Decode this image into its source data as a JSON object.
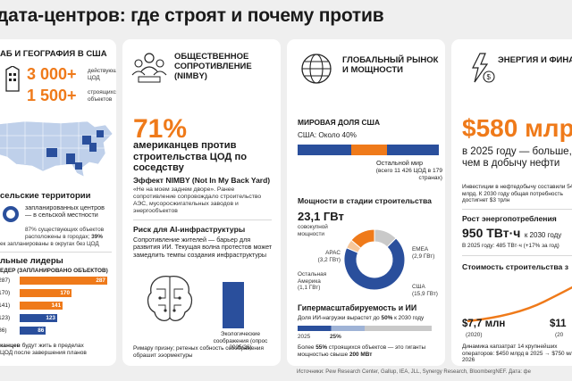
{
  "title": "дата-центров: где строят и почему против",
  "col1": {
    "head": "АБ И ГЕОГРАФИЯ В США",
    "stat1_value": "3 000+",
    "stat1_label": "действующих ЦОД",
    "stat2_value": "1 500+",
    "stat2_label": "строящихся объектов",
    "rural_title": "сельские территории",
    "rural_text": "запланированных центров — в сельской местности",
    "rural_note_a": "87% существующих объектов расположены в городах;",
    "rural_note_b": "39%",
    "rural_note_c": "ек запланированы в округах без ЦОД",
    "leaders_title": "льные лидеры",
    "leaders_sub": "ЕДЕР (ЗАПЛАНИРОВАНО ОБЪЕКТОВ)",
    "leaders": [
      {
        "label": "(287)",
        "value": 287
      },
      {
        "label": "(170)",
        "value": 170
      },
      {
        "label": "(141)",
        "value": 141
      },
      {
        "label": "(123)",
        "value": 123
      },
      {
        "label": "(86)",
        "value": 86
      }
    ],
    "footer_a": "канцев",
    "footer_b": " будут жить в пределах",
    "footer_c": "ЦОД после завершения планов"
  },
  "col2": {
    "head": "ОБЩЕСТВЕННОЕ СОПРОТИВЛЕНИЕ (NIMBY)",
    "pct": "71%",
    "pct_caption": "американцев против строительства ЦОД по соседству",
    "effect_title": "Эффект NIMBY (Not In My Back Yard)",
    "effect_text": "«Не на моем заднем дворе». Ранее сопротивление сопровождало строительство АЭС, мусоросжигательных заводов и энергообъектов",
    "risk_title": "Риск для AI-инфраструктуры",
    "risk_text": "Сопротивление жителей — барьер для развития ИИ. Текущая волна протестов может замедлить темпы создания инфраструктуры",
    "eco_label": "Экологические соображения (опрос 2025/26)",
    "footer": "Римару призну; ретеных собность ссоображения обрашит ээормектуры"
  },
  "col3": {
    "head": "ГЛОБАЛЬНЫЙ РЫНОК И МОЩНОСТИ",
    "share_title": "МИРОВАЯ ДОЛЯ США",
    "share_label": "США: Около 40%",
    "rest_label": "Остальной мир",
    "rest_sub": "(всего 11 426 ЦОД в 179 странах)",
    "capacity_title": "Мощности в стадии строительства",
    "capacity_value": "23,1 ГВт",
    "capacity_sub": "совокупной мощности",
    "segments": [
      {
        "name": "США",
        "value": "(15,9 ГВт)",
        "num": 15.9,
        "color": "#2a4f9c"
      },
      {
        "name": "Остальная Америка",
        "value": "(1,1 ГВт)",
        "num": 1.1,
        "color": "#f6c79a"
      },
      {
        "name": "APAC",
        "value": "(3,2 ГВт)",
        "num": 3.2,
        "color": "#ef7a1a"
      },
      {
        "name": "EMEA",
        "value": "(2,9 ГВт)",
        "num": 2.9,
        "color": "#c9c9c9"
      }
    ],
    "hyper_title": "Гипермасштабируемость и ИИ",
    "hyper_text_a": "Доля ИИ-нагрузки вырастет до ",
    "hyper_text_b": "50%",
    "hyper_text_c": " к 2030 году",
    "hyper_start": "2025",
    "hyper_start_pct": "25%",
    "hyper_value_2025": 25,
    "hyper_value_2030": 50,
    "hyper_foot_a": "Более ",
    "hyper_foot_b": "55%",
    "hyper_foot_c": " строящихся объектов — это гиганты мощностью свыше ",
    "hyper_foot_d": "200 МВт"
  },
  "col4": {
    "head": "ЭНЕРГИЯ И ФИНАНСЫ",
    "invest_value": "$580 млрд",
    "invest_caption": "в 2025 году — больше, чем в добычу нефти",
    "invest_note": "Инвестиции в нефтедобычу составили 540 млрд. К 2030 году общая потребность достигнет $3 трлн",
    "energy_title": "Рост энергопотребления",
    "energy_value": "950 ТВт·ч",
    "energy_suffix": "к 2030 году",
    "energy_note": "В 2025 году: 485 ТВт·ч (+17% за год)",
    "cost_title": "Стоимость строительства з",
    "cost_a": "$7,7 млн",
    "cost_a_year": "(2020)",
    "cost_b": "$11",
    "cost_b_year": "(20",
    "capex": "Динамика капзатрат 14 крупнейших операторов: $450 млрд в 2025 → $750 млрд в 2026"
  },
  "source": "Источники: Pew Research Center, Gallup, IEA, JLL, Synergy Research, BloombergNEF. Дата: фе"
}
